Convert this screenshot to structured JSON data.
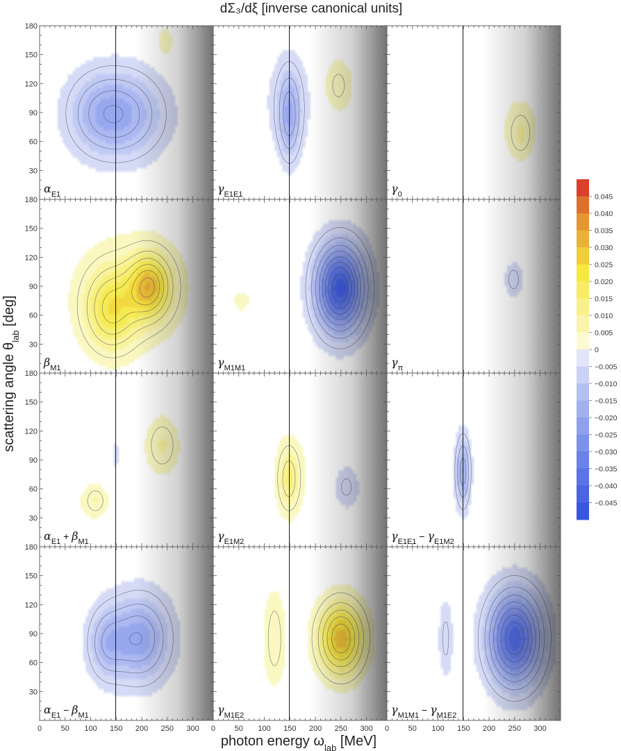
{
  "chart_data": {
    "type": "heatmap",
    "title": "dΣ₃/dξ [inverse canonical units]",
    "xlabel": {
      "main": "photon energy ω",
      "sub": "lab",
      "unit": " [MeV]"
    },
    "ylabel": {
      "main": "scattering angle θ",
      "sub": "lab",
      "unit": " [deg]"
    },
    "xlim": [
      0,
      340
    ],
    "ylim": [
      0,
      180
    ],
    "x_ticks": [
      0,
      50,
      100,
      150,
      200,
      250,
      300
    ],
    "y_ticks": [
      30,
      60,
      90,
      120,
      150,
      180
    ],
    "vertical_line_x": 149,
    "colorbar": {
      "ticks": [
        0.045,
        0.04,
        0.035,
        0.03,
        0.025,
        0.02,
        0.015,
        0.01,
        0.005,
        0,
        -0.005,
        -0.01,
        -0.015,
        -0.02,
        -0.025,
        -0.03,
        -0.035,
        -0.04,
        -0.045
      ],
      "tick_labels": [
        "0.045",
        "0.040",
        "0.035",
        "0.030",
        "0.025",
        "0.020",
        "0.015",
        "0.010",
        "0.005",
        "0",
        "−0.005",
        "−0.010",
        "−0.015",
        "−0.020",
        "−0.025",
        "−0.030",
        "−0.035",
        "−0.040",
        "−0.045"
      ],
      "range": [
        -0.05,
        0.05
      ],
      "colors": {
        "neg_max": "#3050e0",
        "zero": "#ffffff",
        "pos_mid": "#f5e840",
        "pos_orange": "#e08830",
        "pos_max": "#d82828"
      }
    },
    "panels": [
      {
        "label_main": "α",
        "label_sub": "E1",
        "row": 0,
        "col": 0,
        "blobs": [
          {
            "x": 160,
            "y": 88,
            "sx": 55,
            "sy": 30,
            "amp": -0.018
          },
          {
            "x": 105,
            "y": 90,
            "sx": 40,
            "sy": 28,
            "amp": -0.006
          },
          {
            "x": 245,
            "y": 162,
            "sx": 15,
            "sy": 15,
            "amp": 0.004
          }
        ]
      },
      {
        "label_main": "γ",
        "label_sub": "E1E1",
        "row": 0,
        "col": 1,
        "blobs": [
          {
            "x": 149,
            "y": 85,
            "sx": 14,
            "sy": 30,
            "amp": -0.014
          },
          {
            "x": 148,
            "y": 100,
            "sx": 30,
            "sy": 35,
            "amp": -0.006
          },
          {
            "x": 245,
            "y": 118,
            "sx": 20,
            "sy": 20,
            "amp": 0.006
          },
          {
            "x": 40,
            "y": 30,
            "sx": 45,
            "sy": 25,
            "amp": 0.002
          }
        ]
      },
      {
        "label_main": "γ",
        "label_sub": "0",
        "row": 0,
        "col": 2,
        "blobs": [
          {
            "x": 262,
            "y": 68,
            "sx": 15,
            "sy": 15,
            "amp": 0.007
          },
          {
            "x": 250,
            "y": 95,
            "sx": 60,
            "sy": 55,
            "amp": 0.002
          },
          {
            "x": 120,
            "y": 85,
            "sx": 35,
            "sy": 45,
            "amp": -0.002
          }
        ]
      },
      {
        "label_main": "β",
        "label_sub": "M1",
        "row": 1,
        "col": 0,
        "blobs": [
          {
            "x": 215,
            "y": 90,
            "sx": 28,
            "sy": 22,
            "amp": 0.026
          },
          {
            "x": 140,
            "y": 65,
            "sx": 35,
            "sy": 28,
            "amp": 0.018
          },
          {
            "x": 180,
            "y": 85,
            "sx": 75,
            "sy": 40,
            "amp": 0.006
          }
        ]
      },
      {
        "label_main": "γ",
        "label_sub": "M1M1",
        "row": 1,
        "col": 1,
        "blobs": [
          {
            "x": 248,
            "y": 88,
            "sx": 32,
            "sy": 30,
            "amp": -0.045
          },
          {
            "x": 55,
            "y": 75,
            "sx": 22,
            "sy": 15,
            "amp": 0.003
          }
        ]
      },
      {
        "label_main": "γ",
        "label_sub": "π",
        "row": 1,
        "col": 2,
        "blobs": [
          {
            "x": 248,
            "y": 97,
            "sx": 12,
            "sy": 12,
            "amp": -0.007
          },
          {
            "x": 80,
            "y": 100,
            "sx": 55,
            "sy": 55,
            "amp": 0.002
          }
        ]
      },
      {
        "label_main": "α",
        "label_sub": "E1",
        "label_rest": " + ",
        "label_main2": "β",
        "label_sub2": "M1",
        "row": 2,
        "col": 0,
        "blobs": [
          {
            "x": 240,
            "y": 105,
            "sx": 22,
            "sy": 20,
            "amp": 0.008
          },
          {
            "x": 110,
            "y": 48,
            "sx": 14,
            "sy": 10,
            "amp": 0.006
          },
          {
            "x": 80,
            "y": 45,
            "sx": 55,
            "sy": 20,
            "amp": 0.002
          },
          {
            "x": 149,
            "y": 95,
            "sx": 4,
            "sy": 12,
            "amp": -0.005
          }
        ]
      },
      {
        "label_main": "γ",
        "label_sub": "E1M2",
        "row": 2,
        "col": 1,
        "blobs": [
          {
            "x": 148,
            "y": 70,
            "sx": 14,
            "sy": 22,
            "amp": 0.012
          },
          {
            "x": 260,
            "y": 62,
            "sx": 18,
            "sy": 16,
            "amp": -0.006
          },
          {
            "x": 160,
            "y": 80,
            "sx": 45,
            "sy": 40,
            "amp": 0.002
          }
        ]
      },
      {
        "label_main": "γ",
        "label_sub": "E1E1",
        "label_rest": " − ",
        "label_main2": "γ",
        "label_sub2": "E1M2",
        "row": 2,
        "col": 2,
        "blobs": [
          {
            "x": 149,
            "y": 78,
            "sx": 10,
            "sy": 25,
            "amp": -0.018
          },
          {
            "x": 270,
            "y": 90,
            "sx": 50,
            "sy": 55,
            "amp": 0.002
          }
        ]
      },
      {
        "label_main": "α",
        "label_sub": "E1",
        "label_rest": " − ",
        "label_main2": "β",
        "label_sub2": "M1",
        "row": 3,
        "col": 0,
        "blobs": [
          {
            "x": 195,
            "y": 85,
            "sx": 40,
            "sy": 30,
            "amp": -0.02
          },
          {
            "x": 130,
            "y": 80,
            "sx": 25,
            "sy": 25,
            "amp": -0.012
          }
        ]
      },
      {
        "label_main": "γ",
        "label_sub": "M1E2",
        "row": 3,
        "col": 1,
        "blobs": [
          {
            "x": 250,
            "y": 85,
            "sx": 30,
            "sy": 25,
            "amp": 0.03
          },
          {
            "x": 120,
            "y": 85,
            "sx": 15,
            "sy": 35,
            "amp": 0.007
          }
        ]
      },
      {
        "label_main": "γ",
        "label_sub": "M1M1",
        "label_rest": " − ",
        "label_main2": "γ",
        "label_sub2": "M1E2",
        "row": 3,
        "col": 2,
        "blobs": [
          {
            "x": 250,
            "y": 85,
            "sx": 35,
            "sy": 32,
            "amp": -0.04
          },
          {
            "x": 115,
            "y": 85,
            "sx": 10,
            "sy": 30,
            "amp": -0.006
          }
        ]
      }
    ]
  }
}
